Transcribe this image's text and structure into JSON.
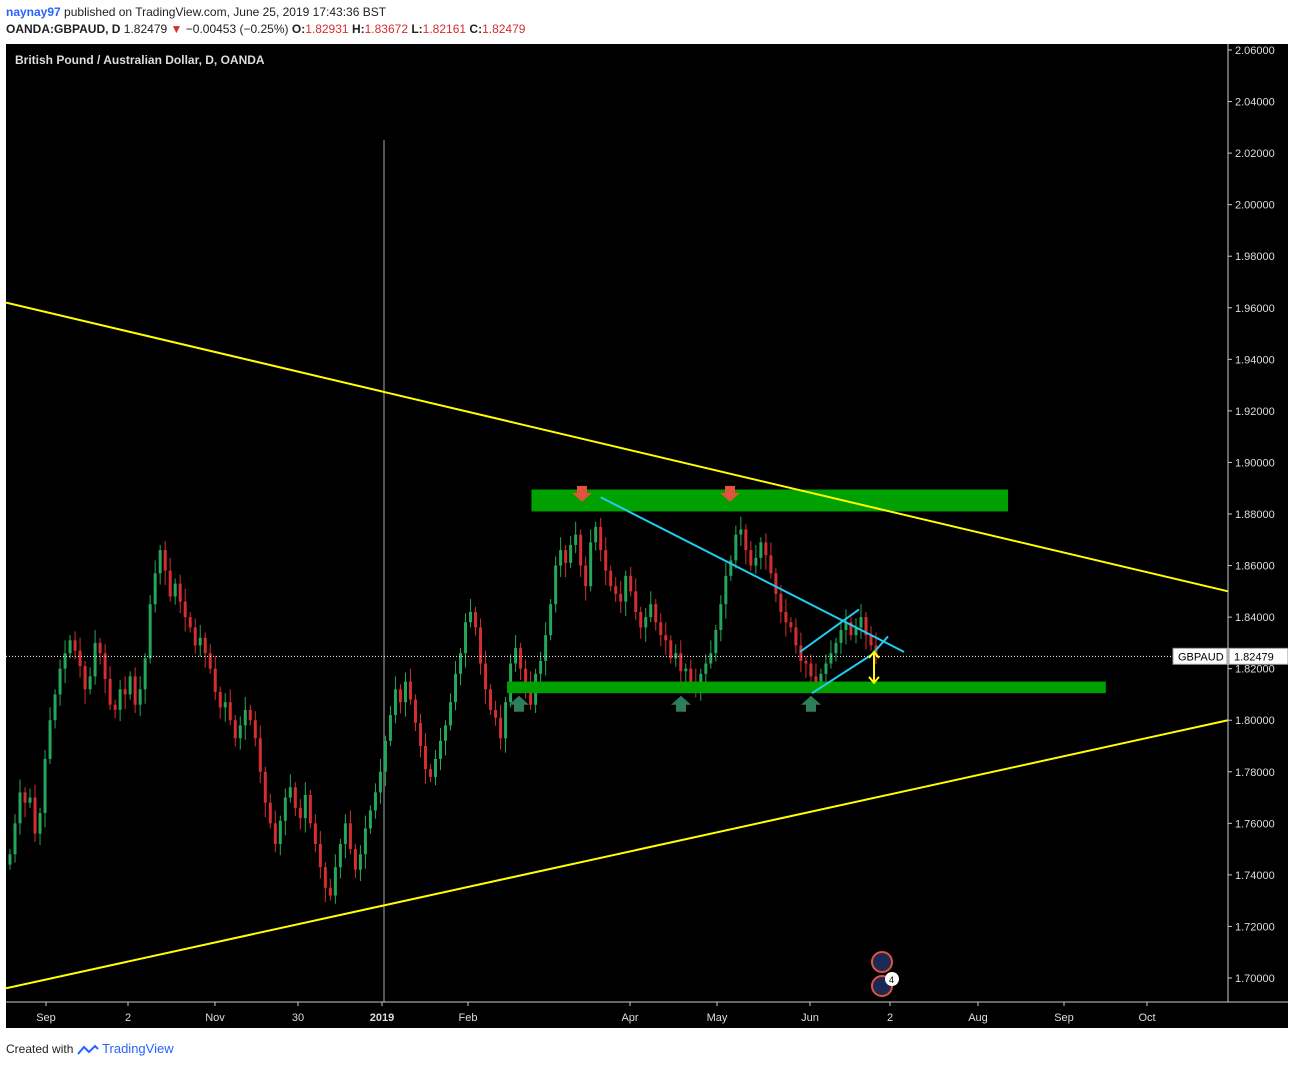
{
  "header": {
    "author": "naynay97",
    "published_text": "published on TradingView.com, June 25, 2019 17:43:36 BST",
    "symbol_line": "OANDA:GBPAUD, D",
    "last": "1.82479",
    "change": "−0.00453 (−0.25%)",
    "o_label": "O:",
    "o_value": "1.82931",
    "h_label": "H:",
    "h_value": "1.83672",
    "l_label": "L:",
    "l_value": "1.82161",
    "c_label": "C:",
    "c_value": "1.82479"
  },
  "footer": {
    "created_with": "Created with",
    "brand": "TradingView"
  },
  "colors": {
    "background": "#000000",
    "up": "#26a65b",
    "down": "#d32f2f",
    "trendline": "#ffff00",
    "zone": "#00a000",
    "channel": "#22ccee",
    "arrow_down": "#e0533c",
    "arrow_up": "#2e7d5b",
    "target": "#ffff00"
  },
  "chart_data": {
    "type": "candlestick",
    "title": "British Pound / Australian Dollar, D, OANDA",
    "x_ticks": [
      "Sep",
      "2",
      "Nov",
      "30",
      "2019",
      "Feb",
      "Apr",
      "May",
      "Jun",
      "2",
      "Aug",
      "Sep",
      "Oct"
    ],
    "y_ticks": [
      "2.06000",
      "2.04000",
      "2.02000",
      "2.00000",
      "1.98000",
      "1.96000",
      "1.94000",
      "1.92000",
      "1.90000",
      "1.88000",
      "1.86000",
      "1.84000",
      "1.82000",
      "1.80000",
      "1.78000",
      "1.76000",
      "1.74000",
      "1.72000",
      "1.70000"
    ],
    "ylim": [
      1.695,
      2.0625
    ],
    "price_label": {
      "symbol": "GBPAUD",
      "value": "1.82479",
      "price": 1.82479
    },
    "closes": [
      1.748,
      1.76,
      1.772,
      1.768,
      1.77,
      1.756,
      1.764,
      1.785,
      1.8,
      1.81,
      1.82,
      1.826,
      1.831,
      1.827,
      1.821,
      1.812,
      1.817,
      1.83,
      1.826,
      1.816,
      1.806,
      1.804,
      1.812,
      1.81,
      1.817,
      1.806,
      1.812,
      1.824,
      1.845,
      1.857,
      1.866,
      1.858,
      1.848,
      1.853,
      1.846,
      1.84,
      1.836,
      1.829,
      1.832,
      1.826,
      1.82,
      1.811,
      1.805,
      1.807,
      1.8,
      1.793,
      1.798,
      1.804,
      1.8,
      1.793,
      1.78,
      1.768,
      1.76,
      1.752,
      1.761,
      1.77,
      1.774,
      1.766,
      1.762,
      1.771,
      1.76,
      1.752,
      1.743,
      1.735,
      1.732,
      1.743,
      1.752,
      1.76,
      1.75,
      1.742,
      1.748,
      1.758,
      1.765,
      1.772,
      1.78,
      1.792,
      1.802,
      1.812,
      1.807,
      1.815,
      1.808,
      1.799,
      1.79,
      1.781,
      1.778,
      1.785,
      1.792,
      1.798,
      1.807,
      1.818,
      1.826,
      1.838,
      1.842,
      1.836,
      1.822,
      1.812,
      1.804,
      1.801,
      1.793,
      1.807,
      1.822,
      1.828,
      1.82,
      1.814,
      1.806,
      1.818,
      1.823,
      1.833,
      1.845,
      1.86,
      1.866,
      1.861,
      1.868,
      1.872,
      1.86,
      1.852,
      1.869,
      1.875,
      1.866,
      1.858,
      1.852,
      1.849,
      1.846,
      1.856,
      1.85,
      1.842,
      1.836,
      1.84,
      1.845,
      1.838,
      1.833,
      1.831,
      1.824,
      1.826,
      1.819,
      1.82,
      1.815,
      1.812,
      1.818,
      1.822,
      1.826,
      1.835,
      1.845,
      1.856,
      1.862,
      1.872,
      1.874,
      1.866,
      1.86,
      1.863,
      1.869,
      1.864,
      1.857,
      1.849,
      1.842,
      1.838,
      1.836,
      1.829,
      1.823,
      1.822,
      1.817,
      1.815,
      1.818,
      1.822,
      1.826,
      1.83,
      1.835,
      1.838,
      1.833,
      1.836,
      1.84,
      1.833,
      1.829,
      1.825
    ]
  },
  "annotations": {
    "trendlines": [
      {
        "from": [
          "start",
          1.962
        ],
        "to": [
          "end",
          1.85
        ]
      },
      {
        "from": [
          "start",
          1.696
        ],
        "to": [
          "end",
          1.8
        ]
      }
    ],
    "zones": [
      {
        "top": 1.8895,
        "bottom": 1.881,
        "x_from": 0.43,
        "x_to": 0.82
      },
      {
        "top": 1.815,
        "bottom": 1.8105,
        "x_from": 0.41,
        "x_to": 0.9
      }
    ],
    "event_badge_count": "4"
  }
}
